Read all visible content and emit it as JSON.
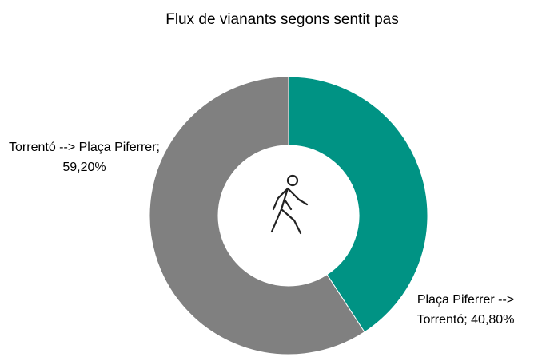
{
  "chart_data": {
    "type": "donut",
    "title": "Flux de vianants segons sentit pas",
    "categories": [
      "Plaça Piferrer --> Torrentó",
      "Torrentó --> Plaça Piferrer"
    ],
    "values": [
      40.8,
      59.2
    ],
    "value_labels": [
      "40,80%",
      "59,20%"
    ],
    "label_separator": "; ",
    "colors": [
      "#009384",
      "#808080"
    ]
  }
}
